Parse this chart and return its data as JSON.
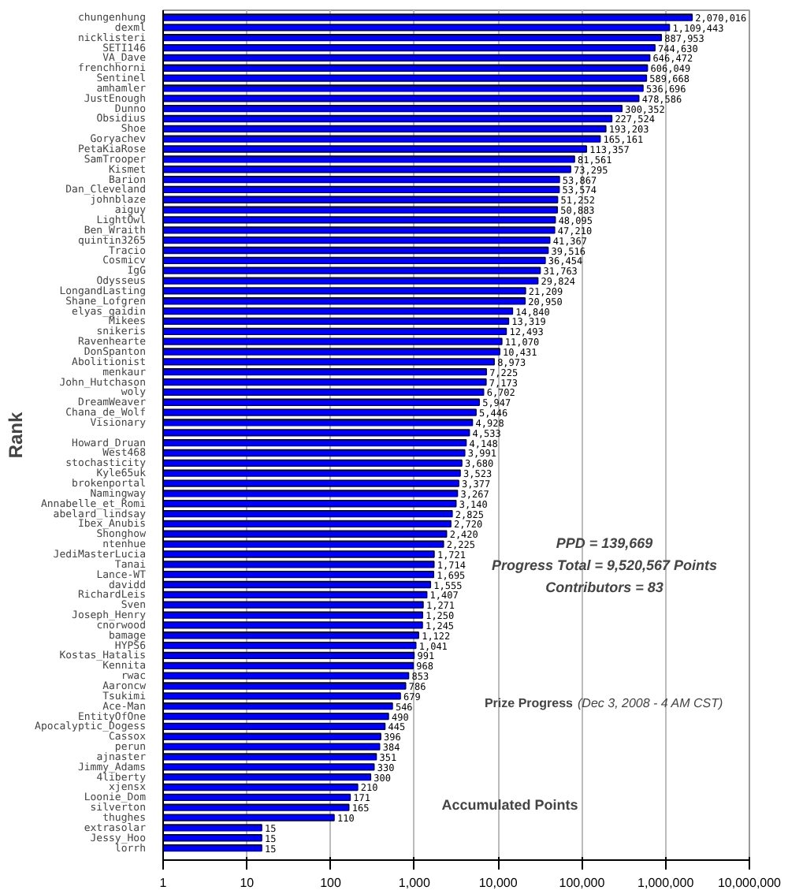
{
  "chart_data": {
    "type": "bar",
    "orientation": "horizontal",
    "log": "x",
    "title": "Prize Progress",
    "subtitle": "(Dec 3, 2008 - 4 AM CST)",
    "xlabel": "Accumulated Points",
    "ylabel": "Rank",
    "annotations": [
      "PPD = 139,669",
      "Progress Total = 9,520,567 Points",
      "Contributors = 83"
    ],
    "categories": [
      "chungenhung",
      "dexml",
      "nicklisteri",
      "SETI146",
      "VA_Dave",
      "frenchhorni",
      "Sentinel",
      "amhamler",
      "JustEnough",
      "Dunno",
      "Obsidius",
      "Shoe",
      "Goryachev",
      "PetaKiaRose",
      "SamTrooper",
      "Kismet",
      "Barion",
      "Dan_Cleveland",
      "johnblaze",
      "aiguy",
      "LightOwl",
      "Ben_Wraith",
      "quintin3265",
      "Tracio",
      "Cosmicv",
      "IgG",
      "Odysseus",
      "LongandLasting",
      "Shane_Lofgren",
      "elyas_gaidin",
      "Mikees",
      "snikeris",
      "Ravenhearte",
      "DonSpanton",
      "Abolitionist",
      "menkaur",
      "John_Hutchason",
      "woly",
      "DreamWeaver",
      "Chana_de_Wolf",
      "Visionary",
      null,
      "Howard_Druan",
      "West468",
      "stochasticity",
      "Kyle65uk",
      "brokenportal",
      "Namingway",
      "Annabelle_et_Romi",
      "abelard_lindsay",
      "Ibex_Anubis",
      "Shonghow",
      "ntenhue",
      "JediMasterLucia",
      "Tanai",
      "Lance-WT",
      "davidd",
      "RichardLeis",
      "Sven",
      "Joseph_Henry",
      "cnorwood",
      "bamage",
      "HYPS6",
      "Kostas_Hatalis",
      "Kennita",
      "rwac",
      "Aaroncw",
      "Tsukimi",
      "Ace-Man",
      "EntityOfOne",
      "Apocalyptic_Dogess",
      "Cassox",
      "perun",
      "ajnaster",
      "Jimmy_Adams",
      "4liberty",
      "xjensx",
      "Loonie_Dom",
      "silverton",
      "thughes",
      "extrasolar",
      "Jessy_Hoo",
      "lorrh"
    ],
    "values": [
      2070016,
      1109443,
      887953,
      744630,
      646472,
      606049,
      589668,
      536696,
      478586,
      300352,
      227524,
      193203,
      165161,
      113357,
      81561,
      73295,
      53867,
      53574,
      51252,
      50883,
      48095,
      47210,
      41367,
      39516,
      36454,
      31763,
      29824,
      21209,
      20950,
      14840,
      13319,
      12493,
      11070,
      10431,
      8973,
      7225,
      7173,
      6702,
      5947,
      5446,
      4928,
      4533,
      4148,
      3991,
      3680,
      3523,
      3377,
      3267,
      3140,
      2825,
      2720,
      2420,
      2225,
      1721,
      1714,
      1695,
      1555,
      1407,
      1271,
      1250,
      1245,
      1122,
      1041,
      991,
      968,
      853,
      786,
      679,
      546,
      490,
      445,
      396,
      384,
      351,
      330,
      300,
      210,
      171,
      165,
      110,
      15,
      15,
      15
    ],
    "value_labels": [
      "2,070,016",
      "1,109,443",
      "887,953",
      "744,630",
      "646,472",
      "606,049",
      "589,668",
      "536,696",
      "478,586",
      "300,352",
      "227,524",
      "193,203",
      "165,161",
      "113,357",
      "81,561",
      "73,295",
      "53,867",
      "53,574",
      "51,252",
      "50,883",
      "48,095",
      "47,210",
      "41,367",
      "39,516",
      "36,454",
      "31,763",
      "29,824",
      "21,209",
      "20,950",
      "14,840",
      "13,319",
      "12,493",
      "11,070",
      "10,431",
      "8,973",
      "7,225",
      "7,173",
      "6,702",
      "5,947",
      "5,446",
      "4,928",
      "4,533",
      "4,148",
      "3,991",
      "3,680",
      "3,523",
      "3,377",
      "3,267",
      "3,140",
      "2,825",
      "2,720",
      "2,420",
      "2,225",
      "1,721",
      "1,714",
      "1,695",
      "1,555",
      "1,407",
      "1,271",
      "1,250",
      "1,245",
      "1,122",
      "1,041",
      "991",
      "968",
      "853",
      "786",
      "679",
      "546",
      "490",
      "445",
      "396",
      "384",
      "351",
      "330",
      "300",
      "210",
      "171",
      "165",
      "110",
      "15",
      "15",
      "15"
    ],
    "color": "#0000ff",
    "grid": "x",
    "xlim": [
      1,
      10000000
    ],
    "xticks": [
      1,
      10,
      100,
      {
        "value": 1000,
        "label": "1,000"
      },
      {
        "value": 10000,
        "label": "10,000"
      },
      {
        "value": 100000,
        "label": "100,000"
      },
      {
        "value": 1000000,
        "label": "1,000,000"
      },
      {
        "value": 10000000,
        "label": "10,000,000"
      }
    ]
  }
}
